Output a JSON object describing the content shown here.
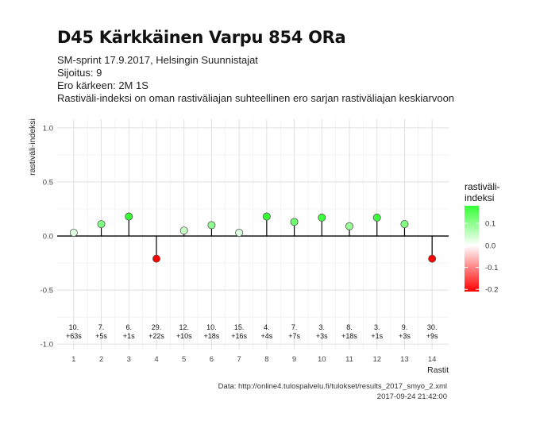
{
  "header": {
    "title": "D45 Kärkkäinen Varpu 854 ORa",
    "subtitle_lines": [
      "SM-sprint 17.9.2017, Helsingin Suunnistajat",
      "Sijoitus: 9",
      "Ero kärkeen: 2M 1S",
      "Rastiväli-indeksi on oman rastiväliajan suhteellinen ero sarjan rastiväliajan keskiarvoon"
    ]
  },
  "chart_data": {
    "type": "scatter",
    "xlabel": "Rastit",
    "ylabel": "rastiväli-indeksi",
    "x_ticks": [
      1,
      2,
      3,
      4,
      5,
      6,
      7,
      8,
      9,
      10,
      11,
      12,
      13,
      14
    ],
    "y_ticks": [
      1.0,
      0.5,
      0.0,
      -0.5,
      -1.0
    ],
    "y_tick_labels": [
      "1.0",
      "0.5",
      "0.0",
      "-0.5",
      "-1.0"
    ],
    "ylim": [
      -1.05,
      1.08
    ],
    "grid": true,
    "x": [
      1,
      2,
      3,
      4,
      5,
      6,
      7,
      8,
      9,
      10,
      11,
      12,
      13,
      14
    ],
    "values": [
      0.03,
      0.11,
      0.18,
      -0.21,
      0.05,
      0.1,
      0.03,
      0.18,
      0.13,
      0.17,
      0.09,
      0.17,
      0.11,
      -0.21
    ],
    "annotations": [
      [
        "10.",
        "+63s"
      ],
      [
        "7.",
        "+5s"
      ],
      [
        "6.",
        "+1s"
      ],
      [
        "29.",
        "+22s"
      ],
      [
        "12.",
        "+10s"
      ],
      [
        "10.",
        "+18s"
      ],
      [
        "15.",
        "+16s"
      ],
      [
        "4.",
        "+4s"
      ],
      [
        "7.",
        "+7s"
      ],
      [
        "3.",
        "+3s"
      ],
      [
        "8.",
        "+18s"
      ],
      [
        "3.",
        "+1s"
      ],
      [
        "9.",
        "+3s"
      ],
      [
        "30.",
        "+9s"
      ]
    ],
    "legend": {
      "title_lines": [
        "rastiväli-",
        "indeksi"
      ],
      "ticks": [
        0.1,
        0.0,
        -0.1,
        -0.2
      ],
      "tick_labels": [
        "0.1",
        "0.0",
        "-0.1",
        "-0.2"
      ],
      "range": [
        -0.21,
        0.18
      ],
      "colors": {
        "high": "#33ff33",
        "mid": "#ffffff",
        "low": "#ff0000"
      },
      "placement": "right"
    }
  },
  "footer": {
    "source": "Data: http://online4.tulospalvelu.fi/tulokset/results_2017_smyo_2.xml",
    "timestamp": "2017-09-24 21:42:00"
  }
}
